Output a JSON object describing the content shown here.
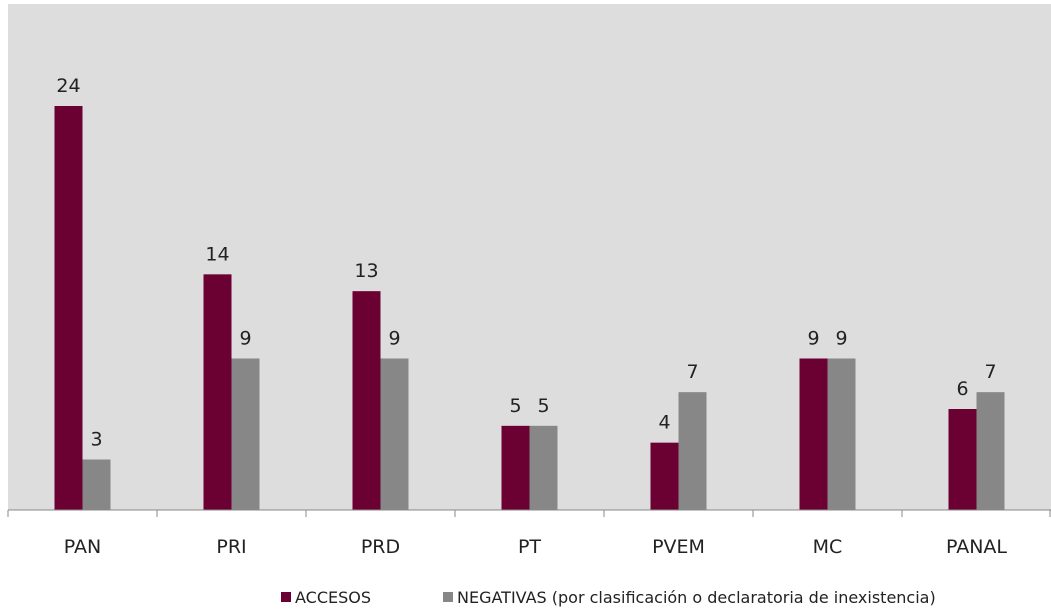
{
  "chart_data": {
    "type": "bar",
    "categories": [
      "PAN",
      "PRI",
      "PRD",
      "PT",
      "PVEM",
      "MC",
      "PANAL"
    ],
    "series": [
      {
        "name": "ACCESOS",
        "values": [
          24,
          14,
          13,
          5,
          4,
          9,
          6
        ],
        "color": "#6b0033"
      },
      {
        "name": "NEGATIVAS (por clasificación o declaratoria de inexistencia)",
        "values": [
          3,
          9,
          9,
          5,
          7,
          9,
          7
        ],
        "color": "#878787"
      }
    ],
    "ylim": [
      0,
      30
    ],
    "grid": false,
    "legend_position": "bottom",
    "background": "#dddddd"
  }
}
